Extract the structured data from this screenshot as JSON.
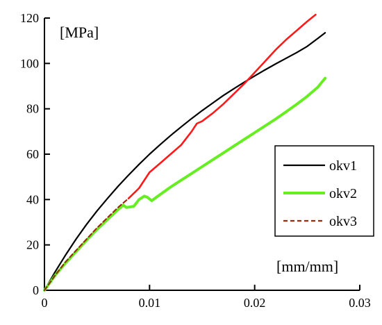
{
  "chart_data": {
    "type": "line",
    "title": "",
    "xlabel": "[mm/mm]",
    "ylabel": "[MPa]",
    "xlim": [
      0,
      0.03
    ],
    "ylim": [
      0,
      120
    ],
    "x_ticks": [
      "0",
      "0.01",
      "0.02",
      "0.03"
    ],
    "y_ticks": [
      "0",
      "20",
      "40",
      "60",
      "80",
      "100",
      "120"
    ],
    "grid": false,
    "legend_position": "right",
    "series": [
      {
        "name": "okv1",
        "color": "#000000",
        "style": "solid",
        "points": [
          [
            0,
            0
          ],
          [
            0.001,
            8
          ],
          [
            0.002,
            15.5
          ],
          [
            0.003,
            22.5
          ],
          [
            0.004,
            29
          ],
          [
            0.005,
            35
          ],
          [
            0.006,
            40.5
          ],
          [
            0.007,
            45.8
          ],
          [
            0.008,
            50.8
          ],
          [
            0.009,
            55.5
          ],
          [
            0.01,
            60
          ],
          [
            0.011,
            64.2
          ],
          [
            0.012,
            68.2
          ],
          [
            0.013,
            72
          ],
          [
            0.014,
            75.7
          ],
          [
            0.015,
            79.2
          ],
          [
            0.016,
            82.5
          ],
          [
            0.017,
            85.8
          ],
          [
            0.018,
            88.8
          ],
          [
            0.019,
            91.7
          ],
          [
            0.02,
            94.5
          ],
          [
            0.021,
            97.2
          ],
          [
            0.022,
            99.8
          ],
          [
            0.023,
            102.3
          ],
          [
            0.024,
            104.8
          ],
          [
            0.025,
            107.5
          ],
          [
            0.026,
            111
          ],
          [
            0.0267,
            113.5
          ]
        ]
      },
      {
        "name": "okv2",
        "color": "#66ee22",
        "style": "solid",
        "points": [
          [
            0,
            0
          ],
          [
            0.001,
            6.5
          ],
          [
            0.002,
            12
          ],
          [
            0.003,
            17
          ],
          [
            0.004,
            22
          ],
          [
            0.005,
            26.8
          ],
          [
            0.006,
            31.2
          ],
          [
            0.007,
            35.5
          ],
          [
            0.0075,
            37.5
          ],
          [
            0.0078,
            36.5
          ],
          [
            0.0085,
            37
          ],
          [
            0.009,
            40
          ],
          [
            0.0095,
            41.5
          ],
          [
            0.0098,
            41
          ],
          [
            0.0102,
            39.5
          ],
          [
            0.0108,
            41.5
          ],
          [
            0.012,
            45.5
          ],
          [
            0.013,
            48.5
          ],
          [
            0.014,
            51.5
          ],
          [
            0.015,
            54.5
          ],
          [
            0.016,
            57.5
          ],
          [
            0.017,
            60.5
          ],
          [
            0.018,
            63.5
          ],
          [
            0.019,
            66.5
          ],
          [
            0.02,
            69.5
          ],
          [
            0.021,
            72.5
          ],
          [
            0.022,
            75.5
          ],
          [
            0.023,
            78.7
          ],
          [
            0.024,
            82
          ],
          [
            0.025,
            85.5
          ],
          [
            0.026,
            89.5
          ],
          [
            0.0267,
            93.5
          ]
        ]
      },
      {
        "name": "okv3",
        "color": "#9b2d0f",
        "style": "dashed",
        "points": [
          [
            0,
            0
          ],
          [
            0.001,
            6.5
          ],
          [
            0.002,
            12.5
          ],
          [
            0.003,
            17.5
          ],
          [
            0.004,
            22.5
          ],
          [
            0.005,
            27.5
          ],
          [
            0.006,
            32
          ],
          [
            0.007,
            36.5
          ],
          [
            0.008,
            40.5
          ],
          [
            0.009,
            45
          ],
          [
            0.01,
            52
          ]
        ]
      },
      {
        "name": "",
        "color": "#ff1a1a",
        "style": "solid",
        "points": [
          [
            0.008,
            40.5
          ],
          [
            0.009,
            45
          ],
          [
            0.01,
            52
          ],
          [
            0.011,
            56
          ],
          [
            0.012,
            60
          ],
          [
            0.013,
            64
          ],
          [
            0.014,
            70
          ],
          [
            0.0145,
            73.5
          ],
          [
            0.015,
            74.5
          ],
          [
            0.016,
            78
          ],
          [
            0.017,
            82
          ],
          [
            0.018,
            86.5
          ],
          [
            0.019,
            91
          ],
          [
            0.02,
            96
          ],
          [
            0.021,
            101
          ],
          [
            0.022,
            106
          ],
          [
            0.023,
            110.5
          ],
          [
            0.024,
            114.5
          ],
          [
            0.025,
            118.5
          ],
          [
            0.0258,
            121.5
          ]
        ]
      }
    ]
  }
}
